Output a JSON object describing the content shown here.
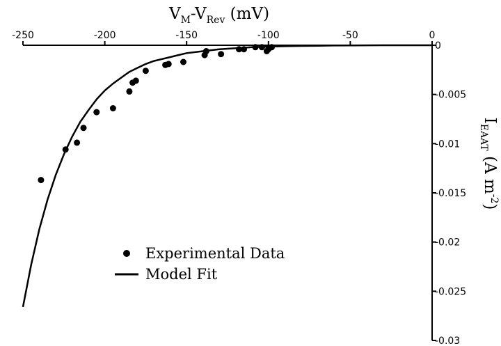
{
  "chart_data": {
    "type": "scatter",
    "title": "",
    "xlabel": {
      "main1": "V",
      "sub1": "M",
      "mid": "-V",
      "sub2": "Rev",
      "tail": " (mV)"
    },
    "ylabel": {
      "main": "I",
      "sub": "EAAT",
      "mid": " (A m",
      "sup": "-2",
      "tail": ")"
    },
    "xlim": [
      -250,
      0
    ],
    "ylim": [
      -0.03,
      0
    ],
    "x_axis_position": "top",
    "y_axis_position": "right",
    "grid": false,
    "legend_position": "bottom-left",
    "xticks": [
      -250,
      -200,
      -150,
      -100,
      -50,
      0
    ],
    "xtick_labels": [
      "-250",
      "-200",
      "-150",
      "-100",
      "-50",
      "0"
    ],
    "yticks": [
      0,
      -0.005,
      -0.01,
      -0.015,
      -0.02,
      -0.025,
      -0.03
    ],
    "ytick_labels": [
      "0",
      "-0.005",
      "-0.01",
      "-0.015",
      "-0.02",
      "-0.025",
      "-0.03"
    ],
    "series": [
      {
        "name": "Experimental Data",
        "kind": "scatter",
        "color": "#000000",
        "points": [
          [
            -239,
            -0.0137
          ],
          [
            -224,
            -0.0106
          ],
          [
            -217,
            -0.0099
          ],
          [
            -213,
            -0.0084
          ],
          [
            -205,
            -0.0068
          ],
          [
            -195,
            -0.0064
          ],
          [
            -185,
            -0.0047
          ],
          [
            -183,
            -0.0038
          ],
          [
            -181,
            -0.0036
          ],
          [
            -175,
            -0.0026
          ],
          [
            -163,
            -0.002
          ],
          [
            -161,
            -0.0019
          ],
          [
            -152,
            -0.0017
          ],
          [
            -139,
            -0.001
          ],
          [
            -138,
            -0.0006
          ],
          [
            -129,
            -0.0009
          ],
          [
            -118,
            -0.0004
          ],
          [
            -115,
            -0.0004
          ],
          [
            -108,
            -0.0002
          ],
          [
            -104,
            -0.0002
          ],
          [
            -101,
            -0.0006
          ],
          [
            -100,
            -0.0004
          ],
          [
            -98,
            -0.0002
          ]
        ]
      },
      {
        "name": "Model Fit",
        "kind": "line",
        "color": "#000000",
        "points": [
          [
            -250,
            -0.0266
          ],
          [
            -245,
            -0.0223
          ],
          [
            -240,
            -0.0187
          ],
          [
            -235,
            -0.0157
          ],
          [
            -230,
            -0.0132
          ],
          [
            -225,
            -0.0111
          ],
          [
            -220,
            -0.0093
          ],
          [
            -215,
            -0.0078
          ],
          [
            -210,
            -0.0066
          ],
          [
            -205,
            -0.0055
          ],
          [
            -200,
            -0.0046
          ],
          [
            -195,
            -0.0039
          ],
          [
            -190,
            -0.0033
          ],
          [
            -185,
            -0.0027
          ],
          [
            -180,
            -0.0023
          ],
          [
            -175,
            -0.0019
          ],
          [
            -170,
            -0.0016
          ],
          [
            -165,
            -0.0014
          ],
          [
            -160,
            -0.0012
          ],
          [
            -155,
            -0.001
          ],
          [
            -150,
            -0.0008
          ],
          [
            -140,
            -0.0006
          ],
          [
            -130,
            -0.0004
          ],
          [
            -120,
            -0.0003
          ],
          [
            -110,
            -0.0002
          ],
          [
            -100,
            -0.00014
          ],
          [
            -90,
            -0.0001
          ],
          [
            -80,
            -7e-05
          ],
          [
            -70,
            -5e-05
          ],
          [
            -60,
            -3e-05
          ],
          [
            -50,
            -2e-05
          ],
          [
            -40,
            -1e-05
          ],
          [
            -30,
            0
          ],
          [
            -20,
            0
          ],
          [
            -10,
            0
          ],
          [
            0,
            0
          ]
        ]
      }
    ]
  }
}
